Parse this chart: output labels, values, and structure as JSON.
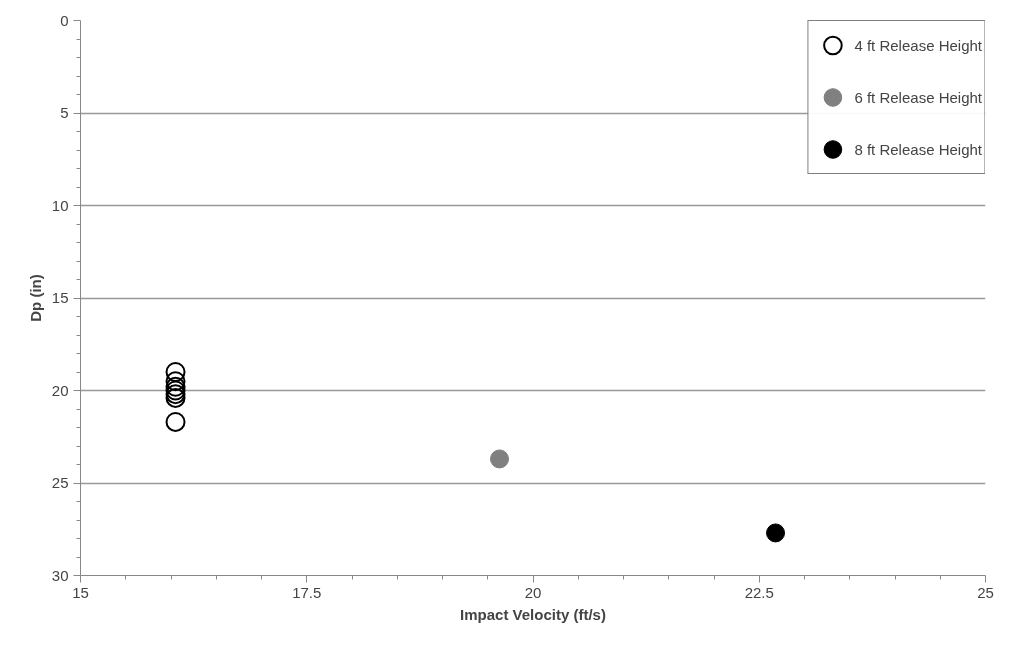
{
  "chart_data": {
    "type": "scatter",
    "xlabel": "Impact Velocity (ft/s)",
    "ylabel": "Dp (in)",
    "xlim": [
      15,
      25
    ],
    "xticks": [
      15,
      17.5,
      20,
      22.5,
      25
    ],
    "ylim": [
      30,
      0
    ],
    "yticks": [
      0,
      5,
      10,
      15,
      20,
      25,
      30
    ],
    "grid": "y",
    "legend": "top right",
    "marker": "circle",
    "series": [
      {
        "name": "4 ft Release Height",
        "color": "#000000",
        "marker": "circle_open",
        "x": [
          16.05,
          16.05,
          16.05,
          16.05,
          16.05,
          16.05,
          16.05
        ],
        "values": [
          19.0,
          19.5,
          19.8,
          20.0,
          20.2,
          20.4,
          21.7
        ]
      },
      {
        "name": "6 ft Release Height",
        "color": "#808080",
        "x": [
          19.63
        ],
        "values": [
          23.7
        ]
      },
      {
        "name": "8 ft Release Height",
        "color": "#000000",
        "x": [
          22.68
        ],
        "values": [
          27.7
        ]
      }
    ]
  }
}
